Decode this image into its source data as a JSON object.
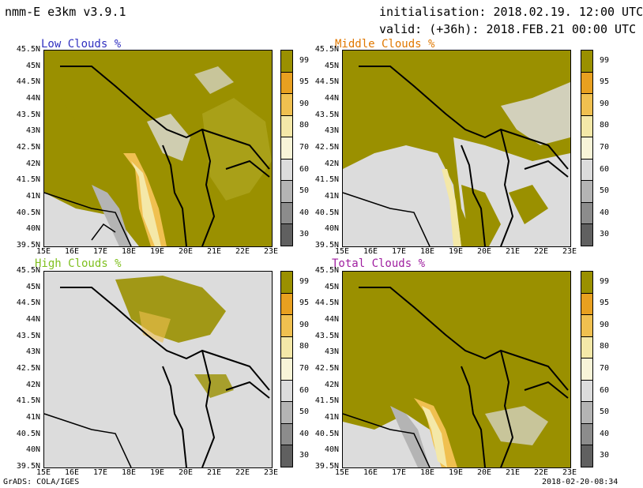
{
  "header": {
    "model": "nmm-E e3km v3.9.1",
    "init": "initialisation: 2018.02.19. 12:00 UTC",
    "valid": "valid: (+36h): 2018.FEB.21 00:00 UTC"
  },
  "footer": {
    "left": "GrADS: COLA/IGES",
    "right": "2018-02-20-08:34"
  },
  "panels": [
    {
      "title": "Low Clouds %",
      "title_color": "#3030c0"
    },
    {
      "title": "Middle Clouds %",
      "title_color": "#e07800"
    },
    {
      "title": "High Clouds %",
      "title_color": "#80c020"
    },
    {
      "title": "Total Clouds %",
      "title_color": "#a020a0"
    }
  ],
  "lat_labels": [
    "45.5N",
    "45N",
    "44.5N",
    "44N",
    "43.5N",
    "43N",
    "42.5N",
    "42N",
    "41.5N",
    "41N",
    "40.5N",
    "40N",
    "39.5N"
  ],
  "lon_labels": [
    "15E",
    "16E",
    "17E",
    "18E",
    "19E",
    "20E",
    "21E",
    "22E",
    "23E"
  ],
  "colorbar": {
    "labels": [
      "99",
      "95",
      "90",
      "80",
      "70",
      "60",
      "50",
      "40",
      "30"
    ],
    "colors": [
      "#9a9000",
      "#e8a020",
      "#f0c050",
      "#f4e8a8",
      "#f8f4d8",
      "#dcdcdc",
      "#b4b4b4",
      "#8c8c8c",
      "#606060"
    ]
  }
}
